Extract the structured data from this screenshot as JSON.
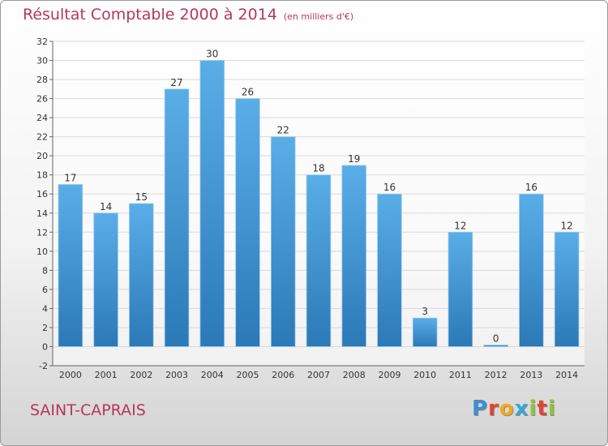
{
  "chart_data": {
    "type": "bar",
    "title": "Résultat Comptable 2000 à 2014",
    "subtitle": "(en milliers d'€)",
    "categories": [
      "2000",
      "2001",
      "2002",
      "2003",
      "2004",
      "2005",
      "2006",
      "2007",
      "2008",
      "2009",
      "2010",
      "2011",
      "2012",
      "2013",
      "2014"
    ],
    "values": [
      17,
      14,
      15,
      27,
      30,
      26,
      22,
      18,
      19,
      16,
      3,
      12,
      0,
      16,
      12
    ],
    "ylim": [
      -2,
      32
    ],
    "yticks": [
      -2,
      0,
      2,
      4,
      6,
      8,
      10,
      12,
      14,
      16,
      18,
      20,
      22,
      24,
      26,
      28,
      30,
      32
    ],
    "grid": true,
    "colors": {
      "bar_top": "#5aaee8",
      "bar_bottom": "#2b79b7",
      "grid": "#d9d9d9",
      "text": "#333333",
      "title": "#b8365a"
    }
  },
  "footer": {
    "commune": "SAINT-CAPRAIS",
    "logo_letters": [
      {
        "char": "P",
        "color": "#3c8fd6"
      },
      {
        "char": "r",
        "color": "#e4432e"
      },
      {
        "char": "o",
        "color": "#f2a81d"
      },
      {
        "char": "x",
        "color": "#36a6d8"
      },
      {
        "char": "i",
        "color": "#8cc540"
      },
      {
        "char": "t",
        "color": "#e4432e"
      },
      {
        "char": "i",
        "color": "#8cc540"
      }
    ]
  }
}
